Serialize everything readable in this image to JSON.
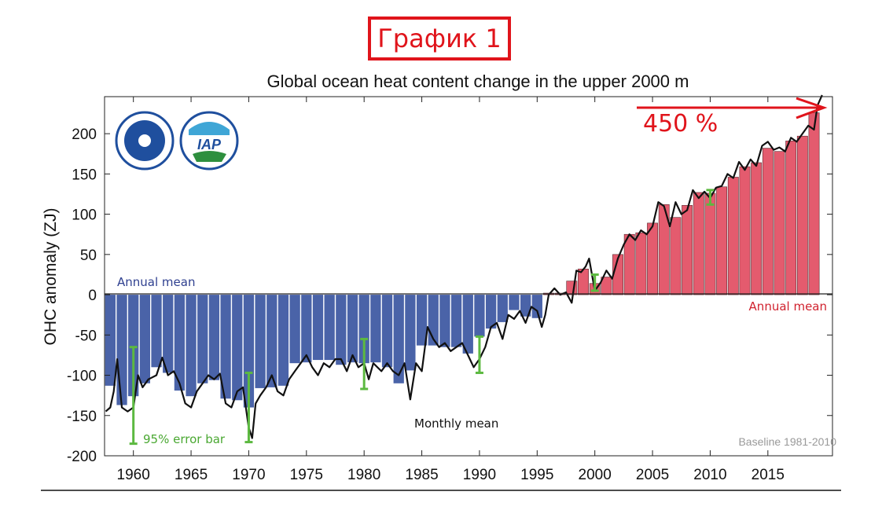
{
  "badge_label": "График 1",
  "chart_data": {
    "type": "bar",
    "title": "Global ocean heat content change in the upper 2000 m",
    "ylabel": "OHC anomaly (ZJ)",
    "xlabel": "",
    "xlim": [
      1957.5,
      2020.6
    ],
    "ylim": [
      -200,
      246
    ],
    "x_ticks": [
      1960,
      1965,
      1970,
      1975,
      1980,
      1985,
      1990,
      1995,
      2000,
      2005,
      2010,
      2015
    ],
    "y_ticks": [
      -200,
      -150,
      -100,
      -50,
      0,
      50,
      100,
      150,
      200
    ],
    "grid": false,
    "colors": {
      "negative": "#4a63a8",
      "positive": "#e45b6e",
      "line": "#111111",
      "error_bar": "#5cb940",
      "annotation": "#e0141b"
    },
    "annual_mean": {
      "years": [
        1958,
        1959,
        1960,
        1961,
        1962,
        1963,
        1964,
        1965,
        1966,
        1967,
        1968,
        1969,
        1970,
        1971,
        1972,
        1973,
        1974,
        1975,
        1976,
        1977,
        1978,
        1979,
        1980,
        1981,
        1982,
        1983,
        1984,
        1985,
        1986,
        1987,
        1988,
        1989,
        1990,
        1991,
        1992,
        1993,
        1994,
        1995,
        1996,
        1997,
        1998,
        1999,
        2000,
        2001,
        2002,
        2003,
        2004,
        2005,
        2006,
        2007,
        2008,
        2009,
        2010,
        2011,
        2012,
        2013,
        2014,
        2015,
        2016,
        2017,
        2018,
        2019
      ],
      "values": [
        -113,
        -137,
        -126,
        -110,
        -90,
        -97,
        -119,
        -126,
        -110,
        -106,
        -129,
        -131,
        -140,
        -116,
        -115,
        -113,
        -85,
        -84,
        -81,
        -81,
        -87,
        -84,
        -85,
        -84,
        -90,
        -110,
        -94,
        -63,
        -63,
        -65,
        -65,
        -73,
        -52,
        -42,
        -34,
        -19,
        -27,
        -29,
        2,
        2,
        17,
        32,
        14,
        22,
        50,
        75,
        77,
        89,
        112,
        96,
        111,
        127,
        126,
        134,
        146,
        159,
        164,
        182,
        178,
        191,
        197,
        226
      ]
    },
    "monthly_mean": {
      "x": [
        1957.6,
        1958.0,
        1958.3,
        1958.6,
        1959.0,
        1959.5,
        1960.0,
        1960.4,
        1960.8,
        1961.3,
        1962.0,
        1962.5,
        1963.0,
        1963.5,
        1964.0,
        1964.5,
        1965.0,
        1965.5,
        1966.0,
        1966.5,
        1967.0,
        1967.5,
        1968.0,
        1968.5,
        1969.0,
        1969.5,
        1970.0,
        1970.3,
        1970.6,
        1971.0,
        1971.5,
        1972.0,
        1972.5,
        1973.0,
        1973.5,
        1974.0,
        1974.5,
        1975.0,
        1975.5,
        1976.0,
        1976.5,
        1977.0,
        1977.5,
        1978.0,
        1978.5,
        1979.0,
        1979.5,
        1980.0,
        1980.4,
        1980.8,
        1981.5,
        1982.0,
        1982.5,
        1983.0,
        1983.5,
        1984.0,
        1984.5,
        1985.0,
        1985.5,
        1986.0,
        1986.5,
        1987.0,
        1987.5,
        1988.0,
        1988.5,
        1989.0,
        1989.5,
        1990.0,
        1990.5,
        1991.0,
        1991.5,
        1992.0,
        1992.5,
        1993.0,
        1993.5,
        1994.0,
        1994.5,
        1995.0,
        1995.4,
        1995.7,
        1996.0,
        1996.5,
        1997.0,
        1997.5,
        1998.0,
        1998.4,
        1998.8,
        1999.2,
        1999.5,
        2000.0,
        2000.5,
        2001.0,
        2001.5,
        2002.0,
        2002.5,
        2003.0,
        2003.5,
        2004.0,
        2004.5,
        2005.0,
        2005.5,
        2006.0,
        2006.5,
        2007.0,
        2007.5,
        2008.0,
        2008.5,
        2009.0,
        2009.5,
        2010.0,
        2010.5,
        2011.0,
        2011.5,
        2012.0,
        2012.5,
        2013.0,
        2013.5,
        2014.0,
        2014.5,
        2015.0,
        2015.5,
        2016.0,
        2016.5,
        2017.0,
        2017.5,
        2018.0,
        2018.5,
        2019.0,
        2019.3,
        2019.7
      ],
      "y": [
        -145,
        -140,
        -120,
        -80,
        -140,
        -145,
        -140,
        -100,
        -115,
        -105,
        -100,
        -78,
        -100,
        -95,
        -110,
        -135,
        -140,
        -120,
        -110,
        -100,
        -105,
        -98,
        -135,
        -140,
        -120,
        -115,
        -165,
        -178,
        -135,
        -125,
        -115,
        -100,
        -120,
        -125,
        -105,
        -95,
        -85,
        -75,
        -90,
        -100,
        -85,
        -90,
        -80,
        -80,
        -95,
        -75,
        -90,
        -85,
        -105,
        -85,
        -95,
        -85,
        -95,
        -100,
        -85,
        -130,
        -85,
        -95,
        -40,
        -55,
        -65,
        -60,
        -70,
        -65,
        -60,
        -75,
        -90,
        -80,
        -65,
        -40,
        -35,
        -55,
        -25,
        -30,
        -20,
        -35,
        -15,
        -20,
        -40,
        -25,
        0,
        8,
        0,
        3,
        -10,
        30,
        28,
        35,
        45,
        5,
        15,
        30,
        20,
        45,
        62,
        75,
        68,
        80,
        75,
        85,
        115,
        110,
        85,
        115,
        100,
        105,
        130,
        120,
        128,
        120,
        133,
        135,
        150,
        145,
        165,
        155,
        168,
        160,
        185,
        190,
        180,
        183,
        178,
        195,
        190,
        200,
        210,
        205,
        235,
        248
      ]
    },
    "error_bars": [
      {
        "year": 1960,
        "low": -185,
        "high": -65
      },
      {
        "year": 1970,
        "low": -183,
        "high": -97
      },
      {
        "year": 1980,
        "low": -117,
        "high": -55
      },
      {
        "year": 1990,
        "low": -97,
        "high": -52
      },
      {
        "year": 2000,
        "low": 5,
        "high": 25
      },
      {
        "year": 2010,
        "low": 112,
        "high": 130
      }
    ],
    "annotations": {
      "annual_mean_left": "Annual mean",
      "annual_mean_right": "Annual mean",
      "monthly_mean": "Monthly mean",
      "error_bar": "95% error bar",
      "baseline": "Baseline 1981-2010",
      "increase": "450 %"
    }
  }
}
